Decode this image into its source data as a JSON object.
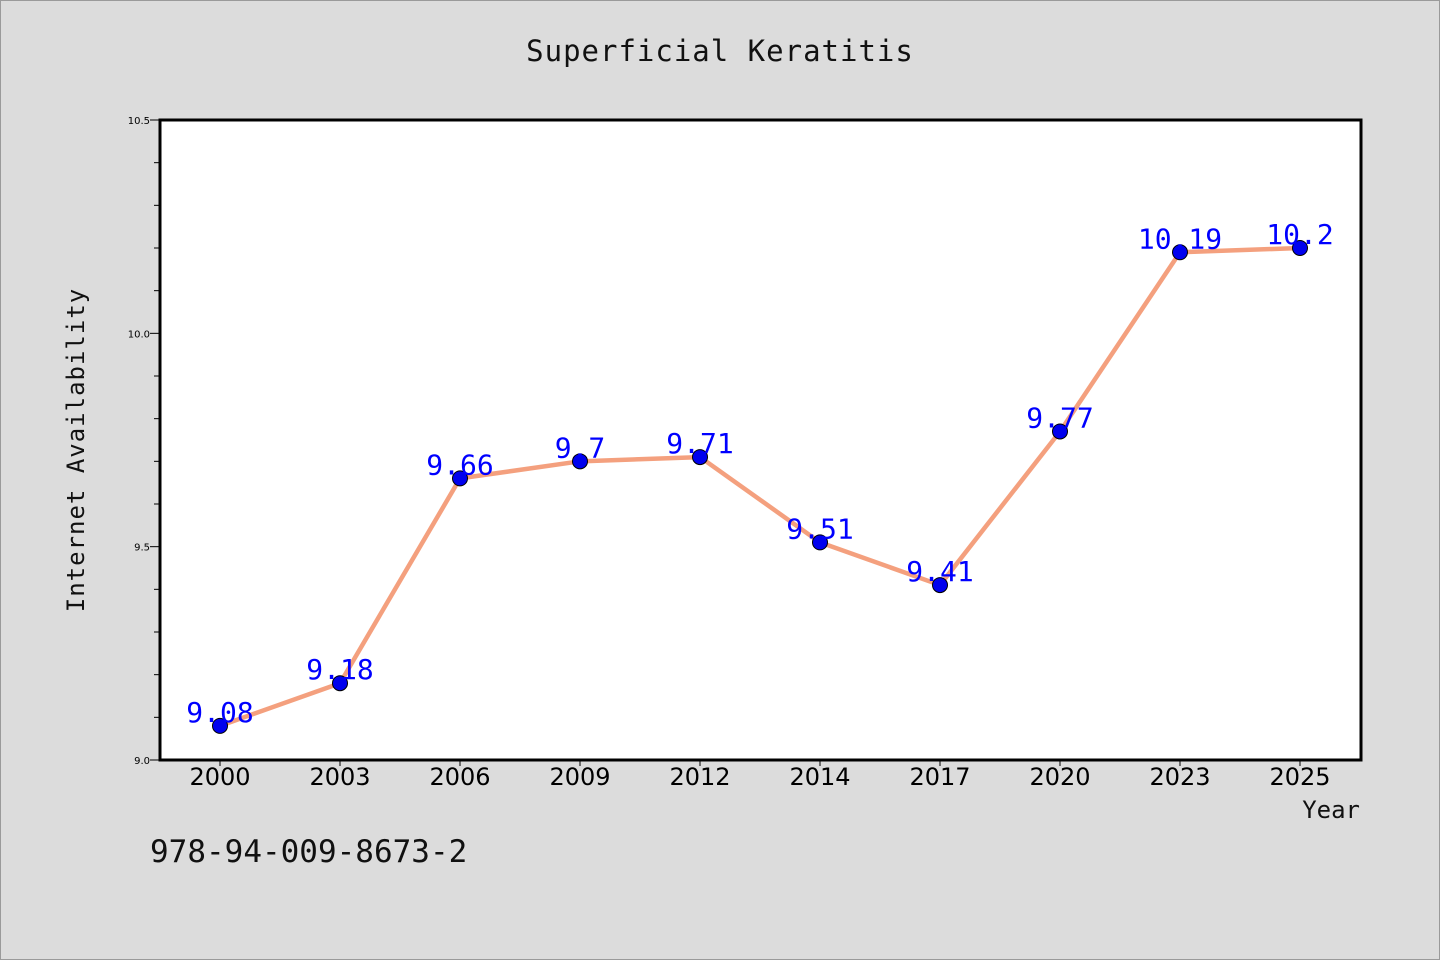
{
  "chart_data": {
    "type": "line",
    "title": "Superficial Keratitis",
    "xlabel": "Year",
    "ylabel": "Internet Availability",
    "categories": [
      "2000",
      "2003",
      "2006",
      "2009",
      "2012",
      "2014",
      "2017",
      "2020",
      "2023",
      "2025"
    ],
    "series": [
      {
        "values": [
          9.08,
          9.18,
          9.66,
          9.7,
          9.71,
          9.51,
          9.41,
          9.77,
          10.19,
          10.2
        ],
        "labels": [
          "9.08",
          "9.18",
          "9.66",
          "9.7",
          "9.71",
          "9.51",
          "9.41",
          "9.77",
          "10.19",
          "10.2"
        ],
        "line_color": "#f4a07e",
        "marker_color": "#0000ee",
        "label_color": "#0000ff"
      }
    ],
    "ylim": [
      9.0,
      10.5
    ],
    "y_ticks": [
      "9.0",
      "9.5",
      "10.0",
      "10.5"
    ],
    "y_minor_step": 0.1,
    "grid": false,
    "legend": "none"
  },
  "footer": {
    "isbn": "978-94-009-8673-2"
  },
  "colors": {
    "background": "#dcdcdc",
    "plot_background": "#ffffff",
    "axis": "#000000"
  }
}
